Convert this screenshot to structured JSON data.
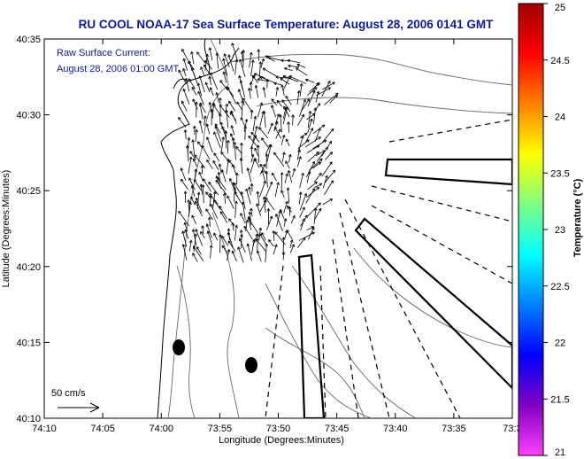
{
  "title": "RU COOL  NOAA-17  Sea Surface Temperature:  August 28, 2006 0141 GMT",
  "annotation": {
    "line1": "Raw Surface Current:",
    "line2": "August 28, 2006 01:00 GMT"
  },
  "scale_label": "50 cm/s",
  "axes": {
    "xlabel": "Longitude (Degrees:Minutes)",
    "ylabel": "Latitude (Degrees:Minutes)",
    "xticks": [
      "74:10",
      "74:05",
      "74:00",
      "73:55",
      "73:50",
      "73:45",
      "73:40",
      "73:35",
      "73:3"
    ],
    "yticks": [
      "40:35",
      "40:30",
      "40:25",
      "40:20",
      "40:15",
      "40:10"
    ]
  },
  "colorbar": {
    "title": "Temperature (°C)",
    "ticks": [
      "25",
      "24.5",
      "24",
      "23.5",
      "23",
      "22.5",
      "22",
      "21.5",
      "21"
    ],
    "colors": [
      "#a00000",
      "#ff0000",
      "#ff8000",
      "#ffff00",
      "#80ff80",
      "#00ffff",
      "#0080ff",
      "#0000ff",
      "#8000c0",
      "#ff40ff"
    ]
  }
}
